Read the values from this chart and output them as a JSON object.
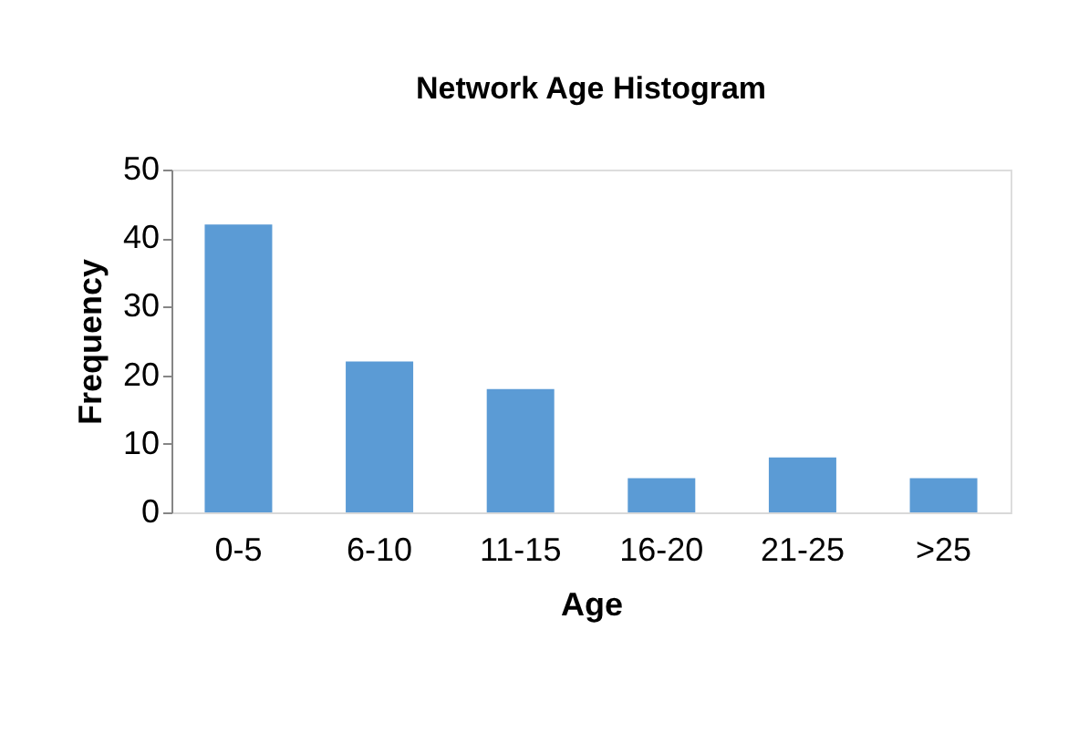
{
  "chart_data": {
    "type": "bar",
    "title": "Network Age Histogram",
    "xlabel": "Age",
    "ylabel": "Frequency",
    "categories": [
      "0-5",
      "6-10",
      "11-15",
      "16-20",
      "21-25",
      ">25"
    ],
    "series": [
      {
        "color": "#5b9bd5",
        "values": [
          42,
          22,
          18,
          5,
          8,
          5
        ]
      }
    ],
    "ylim": [
      0,
      50
    ],
    "yticks": [
      0,
      10,
      20,
      30,
      40,
      50
    ],
    "grid": false,
    "legend": false
  }
}
